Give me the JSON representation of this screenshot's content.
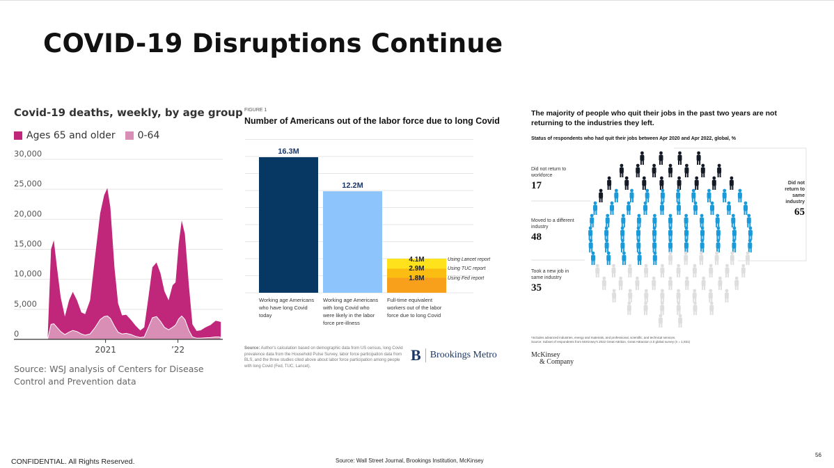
{
  "slide": {
    "title": "COVID-19 Disruptions Continue",
    "footer_left": "CONFIDENTIAL. All Rights Reserved.",
    "footer_source": "Source: Wall Street Journal, Brookings Institution, McKinsey",
    "page_number": "56"
  },
  "wsj": {
    "source": "Source: WSJ analysis of Centers for Disease Control and Prevention data"
  },
  "brookings": {
    "figure_label": "FIGURE 1",
    "source_bold": "Source:",
    "source_text": " Author's calculation based on demographic data from US census, long Covid prevalence data from the Household Pulse Survey, labor force participation data from BLS, and the three studies cited above about labor force participation among people with long Covid (Fed, TUC, Lancet).",
    "logo_mark": "B",
    "logo_text": "Brookings Metro"
  },
  "mckinsey": {
    "footnote": "¹Includes advanced industries, energy and materials, and professional, scientific, and technical services.",
    "source": "Source: Subset of respondents from McKinsey's 2022 Great Attrition, Great Attraction 2.0 global survey (n = 1,831)",
    "logo_line1": "McKinsey",
    "logo_line2": "& Company"
  },
  "chart_data": [
    {
      "type": "area",
      "stacked": true,
      "title": "Covid-19 deaths, weekly, by age group",
      "legend_position": "top-left",
      "grid": true,
      "ylim": [
        0,
        30000
      ],
      "yticks": [
        "30,000",
        "25,000",
        "20,000",
        "15,000",
        "10,000",
        "5,000",
        "0"
      ],
      "xlim": [
        "2019-09-27",
        "2022-08-15"
      ],
      "xticks": [
        {
          "date": "2021-01-01",
          "label": "2021"
        },
        {
          "date": "2022-01-01",
          "label": "’22"
        }
      ],
      "x": [
        "2020-03-15",
        "2020-04-01",
        "2020-04-15",
        "2020-05-01",
        "2020-05-20",
        "2020-06-10",
        "2020-07-01",
        "2020-07-20",
        "2020-08-10",
        "2020-09-01",
        "2020-09-20",
        "2020-10-15",
        "2020-11-10",
        "2020-12-05",
        "2020-12-25",
        "2021-01-10",
        "2021-01-25",
        "2021-02-15",
        "2021-03-05",
        "2021-03-25",
        "2021-04-15",
        "2021-05-10",
        "2021-06-01",
        "2021-06-25",
        "2021-07-15",
        "2021-08-05",
        "2021-08-25",
        "2021-09-15",
        "2021-10-05",
        "2021-10-25",
        "2021-11-15",
        "2021-12-05",
        "2021-12-20",
        "2022-01-05",
        "2022-01-20",
        "2022-02-05",
        "2022-02-25",
        "2022-03-15",
        "2022-04-05",
        "2022-04-25",
        "2022-05-20",
        "2022-06-15",
        "2022-07-10",
        "2022-07-25",
        "2022-08-05"
      ],
      "series": [
        {
          "name": "0-64",
          "color": "#d98fb5",
          "values": [
            0,
            2500,
            2600,
            2000,
            1300,
            800,
            1200,
            1500,
            1300,
            900,
            700,
            900,
            2000,
            3300,
            3800,
            3900,
            3500,
            2200,
            1200,
            900,
            1000,
            800,
            500,
            300,
            400,
            2000,
            3600,
            3800,
            3000,
            2000,
            1600,
            2000,
            2400,
            3400,
            3900,
            3300,
            1500,
            400,
            200,
            200,
            250,
            300,
            400,
            400,
            350
          ]
        },
        {
          "name": "Ages 65 and older",
          "color": "#c0267a",
          "values": [
            0,
            12500,
            13900,
            10000,
            5700,
            3000,
            5300,
            6400,
            5200,
            3600,
            3500,
            5600,
            12000,
            17700,
            20200,
            21300,
            18500,
            9800,
            4800,
            3100,
            3100,
            2400,
            1800,
            1200,
            1600,
            5000,
            8400,
            9000,
            8000,
            6000,
            4900,
            7000,
            7100,
            12600,
            15900,
            14200,
            7500,
            2100,
            1200,
            1300,
            1750,
            2100,
            2700,
            2600,
            2550
          ]
        }
      ]
    },
    {
      "type": "bar",
      "title": "Number of Americans out of the labor force due to long Covid",
      "grid": true,
      "unit": "M",
      "categories": [
        "Working age Americans who have long Covid today",
        "Working age Americans with long Covid who were likely in the labor force pre-illness",
        "Full-time equivalent workers out of the labor force due to long Covid"
      ],
      "bars": [
        {
          "value": 16.3,
          "label": "16.3M",
          "color": "#073763"
        },
        {
          "value": 12.2,
          "label": "12.2M",
          "color": "#8cc4fb"
        }
      ],
      "estimates": [
        {
          "value": 1.8,
          "label": "1.8M",
          "name": "Using Fed report",
          "color": "#f8a01c"
        },
        {
          "value": 2.9,
          "label": "2.9M",
          "name": "Using TUC report",
          "color": "#fbbd12"
        },
        {
          "value": 4.1,
          "label": "4.1M",
          "name": "Using Lancet report",
          "color": "#fde21c"
        }
      ]
    },
    {
      "type": "pictogram",
      "title": "The majority of people who quit their jobs in the past two years are not returning to the industries they left.",
      "subtitle": "Status of respondents who had quit their jobs between Apr 2020 and Apr 2022, global, %",
      "groups": [
        {
          "label": "Did not return to workforce",
          "value": 17,
          "color": "#151b26"
        },
        {
          "label": "Moved to a different industry",
          "value": 48,
          "color": "#1a9ad9"
        },
        {
          "label": "Took a new job in same industry",
          "value": 35,
          "color": "#dedede"
        }
      ],
      "bracket": {
        "label": "Did not return to same industry",
        "value": 65
      }
    }
  ]
}
